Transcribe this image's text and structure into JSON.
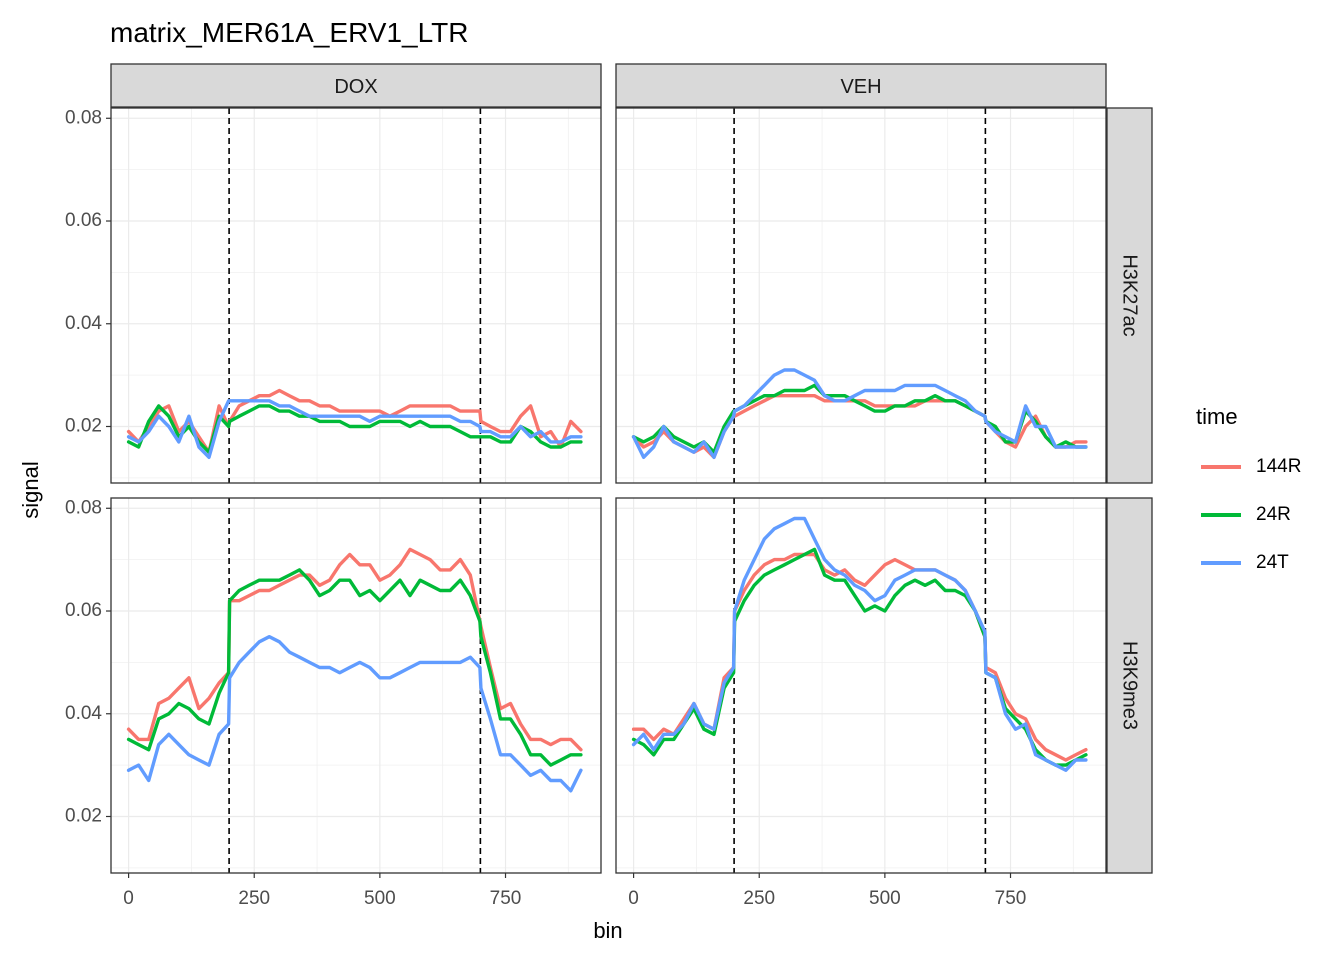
{
  "chart_data": {
    "type": "line",
    "title": "matrix_MER61A_ERV1_LTR",
    "xlabel": "bin",
    "ylabel": "signal",
    "xlim": [
      -35,
      940
    ],
    "ylim": [
      0.009,
      0.082
    ],
    "x_ticks": [
      0,
      250,
      500,
      750
    ],
    "x_tick_labels": [
      "0",
      "250",
      "500",
      "750"
    ],
    "y_ticks": [
      0.02,
      0.04,
      0.06,
      0.08
    ],
    "y_tick_labels": [
      "0.02",
      "0.04",
      "0.06",
      "0.08"
    ],
    "vlines": [
      200,
      700
    ],
    "grid": true,
    "legend": {
      "title": "time",
      "placement": "right"
    },
    "columns": [
      "DOX",
      "VEH"
    ],
    "rows": [
      "H3K27ac",
      "H3K9me3"
    ],
    "series_styles": [
      {
        "name": "144R",
        "color": "#F8766D"
      },
      {
        "name": "24R",
        "color": "#00BA38"
      },
      {
        "name": "24T",
        "color": "#619CFF"
      }
    ],
    "x": [
      0,
      20,
      40,
      60,
      80,
      100,
      120,
      140,
      160,
      180,
      199,
      201,
      220,
      240,
      260,
      280,
      300,
      320,
      340,
      360,
      380,
      400,
      420,
      440,
      460,
      480,
      500,
      520,
      540,
      560,
      580,
      600,
      620,
      640,
      660,
      680,
      699,
      701,
      720,
      740,
      760,
      780,
      800,
      820,
      840,
      860,
      880,
      900
    ],
    "facets": [
      {
        "col": "DOX",
        "row": "H3K27ac",
        "series": [
          {
            "name": "144R",
            "values": [
              0.019,
              0.017,
              0.02,
              0.023,
              0.024,
              0.019,
              0.021,
              0.018,
              0.015,
              0.024,
              0.02,
              0.021,
              0.024,
              0.025,
              0.026,
              0.026,
              0.027,
              0.026,
              0.025,
              0.025,
              0.024,
              0.024,
              0.023,
              0.023,
              0.023,
              0.023,
              0.023,
              0.022,
              0.023,
              0.024,
              0.024,
              0.024,
              0.024,
              0.024,
              0.023,
              0.023,
              0.023,
              0.021,
              0.02,
              0.019,
              0.019,
              0.022,
              0.024,
              0.018,
              0.019,
              0.016,
              0.021,
              0.019
            ]
          },
          {
            "name": "24R",
            "values": [
              0.017,
              0.016,
              0.021,
              0.024,
              0.022,
              0.018,
              0.02,
              0.017,
              0.015,
              0.022,
              0.02,
              0.021,
              0.022,
              0.023,
              0.024,
              0.024,
              0.023,
              0.023,
              0.022,
              0.022,
              0.021,
              0.021,
              0.021,
              0.02,
              0.02,
              0.02,
              0.021,
              0.021,
              0.021,
              0.02,
              0.021,
              0.02,
              0.02,
              0.02,
              0.019,
              0.018,
              0.018,
              0.018,
              0.018,
              0.017,
              0.017,
              0.02,
              0.019,
              0.017,
              0.016,
              0.016,
              0.017,
              0.017
            ]
          },
          {
            "name": "24T",
            "values": [
              0.018,
              0.017,
              0.019,
              0.022,
              0.02,
              0.017,
              0.022,
              0.016,
              0.014,
              0.021,
              0.025,
              0.025,
              0.025,
              0.025,
              0.025,
              0.025,
              0.024,
              0.024,
              0.023,
              0.022,
              0.022,
              0.022,
              0.022,
              0.022,
              0.022,
              0.021,
              0.022,
              0.022,
              0.022,
              0.022,
              0.022,
              0.022,
              0.022,
              0.022,
              0.021,
              0.021,
              0.02,
              0.019,
              0.019,
              0.018,
              0.018,
              0.02,
              0.018,
              0.019,
              0.017,
              0.017,
              0.018,
              0.018
            ]
          }
        ]
      },
      {
        "col": "VEH",
        "row": "H3K27ac",
        "series": [
          {
            "name": "144R",
            "values": [
              0.018,
              0.016,
              0.017,
              0.019,
              0.017,
              0.016,
              0.015,
              0.016,
              0.014,
              0.019,
              0.022,
              0.022,
              0.023,
              0.024,
              0.025,
              0.026,
              0.026,
              0.026,
              0.026,
              0.026,
              0.025,
              0.025,
              0.025,
              0.025,
              0.025,
              0.024,
              0.024,
              0.024,
              0.024,
              0.024,
              0.025,
              0.025,
              0.025,
              0.025,
              0.024,
              0.023,
              0.022,
              0.021,
              0.019,
              0.017,
              0.016,
              0.02,
              0.022,
              0.018,
              0.016,
              0.016,
              0.017,
              0.017
            ]
          },
          {
            "name": "24R",
            "values": [
              0.018,
              0.017,
              0.018,
              0.02,
              0.018,
              0.017,
              0.016,
              0.017,
              0.015,
              0.02,
              0.023,
              0.023,
              0.024,
              0.025,
              0.026,
              0.026,
              0.027,
              0.027,
              0.027,
              0.028,
              0.026,
              0.026,
              0.026,
              0.025,
              0.024,
              0.023,
              0.023,
              0.024,
              0.024,
              0.025,
              0.025,
              0.026,
              0.025,
              0.025,
              0.024,
              0.023,
              0.022,
              0.021,
              0.02,
              0.017,
              0.017,
              0.023,
              0.021,
              0.018,
              0.016,
              0.017,
              0.016,
              0.016
            ]
          },
          {
            "name": "24T",
            "values": [
              0.018,
              0.014,
              0.016,
              0.02,
              0.017,
              0.016,
              0.015,
              0.017,
              0.014,
              0.019,
              0.022,
              0.023,
              0.024,
              0.026,
              0.028,
              0.03,
              0.031,
              0.031,
              0.03,
              0.029,
              0.026,
              0.025,
              0.025,
              0.026,
              0.027,
              0.027,
              0.027,
              0.027,
              0.028,
              0.028,
              0.028,
              0.028,
              0.027,
              0.026,
              0.025,
              0.023,
              0.022,
              0.021,
              0.019,
              0.018,
              0.017,
              0.024,
              0.02,
              0.02,
              0.016,
              0.016,
              0.016,
              0.016
            ]
          }
        ]
      },
      {
        "col": "DOX",
        "row": "H3K9me3",
        "series": [
          {
            "name": "144R",
            "values": [
              0.037,
              0.035,
              0.035,
              0.042,
              0.043,
              0.045,
              0.047,
              0.041,
              0.043,
              0.046,
              0.048,
              0.062,
              0.062,
              0.063,
              0.064,
              0.064,
              0.065,
              0.066,
              0.067,
              0.067,
              0.065,
              0.066,
              0.069,
              0.071,
              0.069,
              0.069,
              0.066,
              0.067,
              0.069,
              0.072,
              0.071,
              0.07,
              0.068,
              0.068,
              0.07,
              0.067,
              0.058,
              0.057,
              0.049,
              0.041,
              0.042,
              0.038,
              0.035,
              0.035,
              0.034,
              0.035,
              0.035,
              0.033
            ]
          },
          {
            "name": "24R",
            "values": [
              0.035,
              0.034,
              0.033,
              0.039,
              0.04,
              0.042,
              0.041,
              0.039,
              0.038,
              0.044,
              0.048,
              0.062,
              0.064,
              0.065,
              0.066,
              0.066,
              0.066,
              0.067,
              0.068,
              0.066,
              0.063,
              0.064,
              0.066,
              0.066,
              0.063,
              0.064,
              0.062,
              0.064,
              0.066,
              0.063,
              0.066,
              0.065,
              0.064,
              0.064,
              0.066,
              0.063,
              0.058,
              0.055,
              0.048,
              0.039,
              0.039,
              0.036,
              0.032,
              0.032,
              0.03,
              0.031,
              0.032,
              0.032
            ]
          },
          {
            "name": "24T",
            "values": [
              0.029,
              0.03,
              0.027,
              0.034,
              0.036,
              0.034,
              0.032,
              0.031,
              0.03,
              0.036,
              0.038,
              0.047,
              0.05,
              0.052,
              0.054,
              0.055,
              0.054,
              0.052,
              0.051,
              0.05,
              0.049,
              0.049,
              0.048,
              0.049,
              0.05,
              0.049,
              0.047,
              0.047,
              0.048,
              0.049,
              0.05,
              0.05,
              0.05,
              0.05,
              0.05,
              0.051,
              0.049,
              0.045,
              0.039,
              0.032,
              0.032,
              0.03,
              0.028,
              0.029,
              0.027,
              0.027,
              0.025,
              0.029
            ]
          }
        ]
      },
      {
        "col": "VEH",
        "row": "H3K9me3",
        "series": [
          {
            "name": "144R",
            "values": [
              0.037,
              0.037,
              0.035,
              0.037,
              0.036,
              0.039,
              0.042,
              0.038,
              0.037,
              0.047,
              0.049,
              0.06,
              0.064,
              0.067,
              0.069,
              0.07,
              0.07,
              0.071,
              0.071,
              0.071,
              0.068,
              0.067,
              0.068,
              0.066,
              0.065,
              0.067,
              0.069,
              0.07,
              0.069,
              0.068,
              0.068,
              0.068,
              0.067,
              0.066,
              0.064,
              0.06,
              0.055,
              0.049,
              0.048,
              0.043,
              0.04,
              0.039,
              0.035,
              0.033,
              0.032,
              0.031,
              0.032,
              0.033
            ]
          },
          {
            "name": "24R",
            "values": [
              0.035,
              0.034,
              0.032,
              0.035,
              0.035,
              0.038,
              0.041,
              0.037,
              0.036,
              0.045,
              0.048,
              0.058,
              0.062,
              0.065,
              0.067,
              0.068,
              0.069,
              0.07,
              0.071,
              0.072,
              0.067,
              0.066,
              0.066,
              0.063,
              0.06,
              0.061,
              0.06,
              0.063,
              0.065,
              0.066,
              0.065,
              0.066,
              0.064,
              0.064,
              0.063,
              0.06,
              0.055,
              0.048,
              0.047,
              0.041,
              0.039,
              0.037,
              0.033,
              0.031,
              0.03,
              0.03,
              0.031,
              0.032
            ]
          },
          {
            "name": "24T",
            "values": [
              0.034,
              0.036,
              0.033,
              0.036,
              0.036,
              0.038,
              0.042,
              0.038,
              0.037,
              0.046,
              0.049,
              0.06,
              0.066,
              0.07,
              0.074,
              0.076,
              0.077,
              0.078,
              0.078,
              0.074,
              0.07,
              0.068,
              0.067,
              0.065,
              0.064,
              0.062,
              0.063,
              0.066,
              0.067,
              0.068,
              0.068,
              0.068,
              0.067,
              0.066,
              0.064,
              0.06,
              0.056,
              0.048,
              0.047,
              0.04,
              0.037,
              0.038,
              0.032,
              0.031,
              0.03,
              0.029,
              0.031,
              0.031
            ]
          }
        ]
      }
    ]
  }
}
